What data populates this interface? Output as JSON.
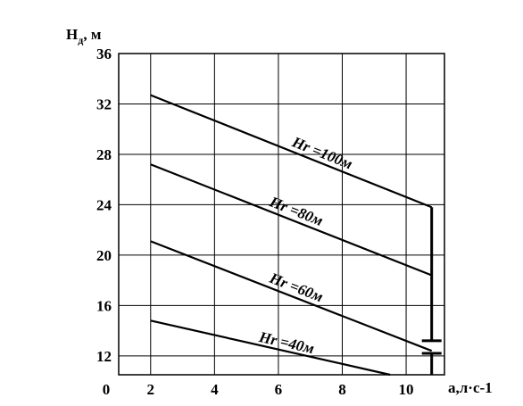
{
  "chart_data": {
    "type": "line",
    "xlabel": "а,л·с-1",
    "ylabel": "Hд, м",
    "ylabel_parts": {
      "main": "H",
      "sub": "д",
      "rest": ", м"
    },
    "xlim": [
      1,
      11.2
    ],
    "ylim": [
      10.5,
      36
    ],
    "x_ticks": [
      0,
      2,
      4,
      6,
      8,
      10
    ],
    "x_tick_labels": [
      "0",
      "2",
      "4",
      "6",
      "8",
      "10"
    ],
    "y_ticks": [
      12,
      16,
      20,
      24,
      28,
      32,
      36
    ],
    "y_tick_labels": [
      "12",
      "16",
      "20",
      "24",
      "28",
      "32",
      "36"
    ],
    "grid": true,
    "series": [
      {
        "name": "Hr =100м",
        "points": [
          [
            2.0,
            32.7
          ],
          [
            10.8,
            23.8
          ]
        ]
      },
      {
        "name": "Hr =80м",
        "points": [
          [
            2.0,
            27.2
          ],
          [
            10.8,
            18.4
          ]
        ]
      },
      {
        "name": "Hr =60м",
        "points": [
          [
            2.0,
            21.1
          ],
          [
            10.8,
            12.4
          ]
        ]
      },
      {
        "name": "Hr =40м",
        "points": [
          [
            2.0,
            14.8
          ],
          [
            9.5,
            10.5
          ]
        ]
      }
    ],
    "vertical_line": {
      "x": 10.8,
      "y_from": 10.5,
      "y_to": 23.8
    },
    "capacitor_marker": {
      "x": 10.8,
      "y_upper": 13.2,
      "y_lower": 12.2
    }
  }
}
